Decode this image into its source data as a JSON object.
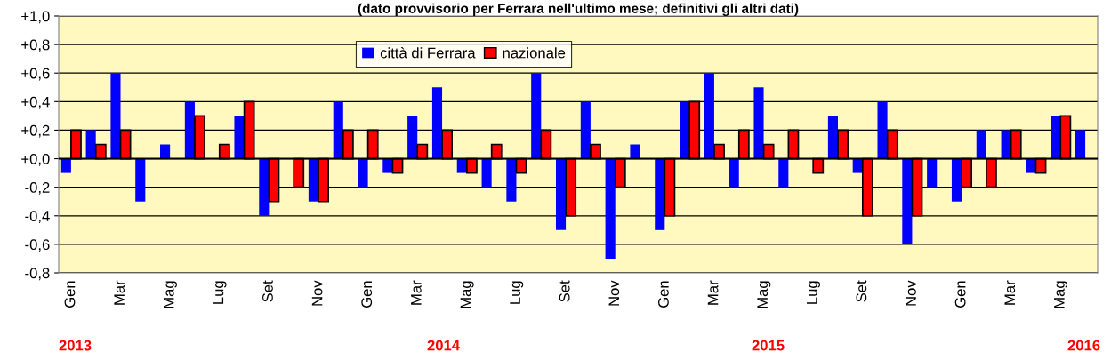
{
  "chart_data": {
    "type": "bar",
    "title": "(dato provvisorio per Ferrara nell'ultimo mese; definitivi gli altri dati)",
    "categories": [
      "Gen",
      null,
      "Mar",
      null,
      "Mag",
      null,
      "Lug",
      null,
      "Set",
      null,
      "Nov",
      null,
      "Gen",
      null,
      "Mar",
      null,
      "Mag",
      null,
      "Lug",
      null,
      "Set",
      null,
      "Nov",
      null,
      "Gen",
      null,
      "Mar",
      null,
      "Mag",
      null,
      "Lug",
      null,
      "Set",
      null,
      "Nov",
      null,
      "Gen",
      null,
      "Mar",
      null,
      "Mag",
      null
    ],
    "series": [
      {
        "name": "città di Ferrara",
        "color": "#0000ff",
        "values": [
          -0.1,
          0.2,
          0.6,
          -0.3,
          0.1,
          0.4,
          0,
          0.3,
          -0.4,
          0,
          -0.3,
          0.4,
          -0.2,
          -0.1,
          0.3,
          0.5,
          -0.1,
          -0.2,
          -0.3,
          0.6,
          -0.5,
          0.4,
          -0.7,
          0.1,
          -0.5,
          0.4,
          0.6,
          -0.2,
          0.5,
          -0.2,
          0,
          0.3,
          -0.1,
          0.4,
          -0.6,
          -0.2,
          -0.3,
          0.2,
          0.2,
          -0.1,
          0.3,
          0.2
        ]
      },
      {
        "name": "nazionale",
        "color": "#ff0000",
        "values": [
          0.2,
          0.1,
          0.2,
          0,
          0,
          0.3,
          0.1,
          0.4,
          -0.3,
          -0.2,
          -0.3,
          0.2,
          0.2,
          -0.1,
          0.1,
          0.2,
          -0.1,
          0.1,
          -0.1,
          0.2,
          -0.4,
          0.1,
          -0.2,
          0,
          -0.4,
          0.4,
          0.1,
          0.2,
          0.1,
          0.2,
          -0.1,
          0.2,
          -0.4,
          0.2,
          -0.4,
          0,
          -0.2,
          -0.2,
          0.2,
          -0.1,
          0.3,
          null
        ]
      }
    ],
    "ylim": [
      -0.8,
      1.0
    ],
    "yticks": [
      {
        "value": -0.8,
        "label": "-0,8"
      },
      {
        "value": -0.6,
        "label": "-0,6"
      },
      {
        "value": -0.4,
        "label": "-0,4"
      },
      {
        "value": -0.2,
        "label": "-0,2"
      },
      {
        "value": 0,
        "label": "+0,0"
      },
      {
        "value": 0.2,
        "label": "+0,2"
      },
      {
        "value": 0.4,
        "label": "+0,4"
      },
      {
        "value": 0.6,
        "label": "+0,6"
      },
      {
        "value": 0.8,
        "label": "+0,8"
      },
      {
        "value": 1.0,
        "label": "+1,0"
      }
    ],
    "grid": "y",
    "legend": "top",
    "annotations": [
      "2013",
      "2014",
      "2015",
      "2016"
    ]
  }
}
